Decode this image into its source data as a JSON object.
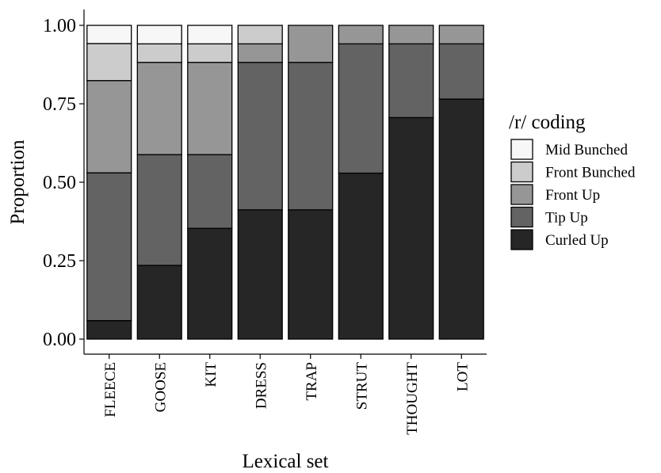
{
  "chart_data": {
    "type": "bar",
    "stacked": true,
    "title": "",
    "xlabel": "Lexical set",
    "ylabel": "Proportion",
    "ylim": [
      0,
      1
    ],
    "yticks": [
      "0.00",
      "0.25",
      "0.50",
      "0.75",
      "1.00"
    ],
    "grid": false,
    "legend_position": "right",
    "legend_title": "/r/ coding",
    "categories": [
      "FLEECE",
      "GOOSE",
      "KIT",
      "DRESS",
      "TRAP",
      "STRUT",
      "THOUGHT",
      "LOT"
    ],
    "series": [
      {
        "name": "Curled Up",
        "color": "#262626",
        "values": [
          0.059,
          0.235,
          0.353,
          0.412,
          0.412,
          0.529,
          0.706,
          0.765
        ]
      },
      {
        "name": "Tip Up",
        "color": "#636363",
        "values": [
          0.471,
          0.353,
          0.235,
          0.47,
          0.47,
          0.412,
          0.235,
          0.176
        ]
      },
      {
        "name": "Front Up",
        "color": "#969696",
        "values": [
          0.294,
          0.294,
          0.294,
          0.059,
          0.118,
          0.059,
          0.059,
          0.059
        ]
      },
      {
        "name": "Front Bunched",
        "color": "#cccccc",
        "values": [
          0.118,
          0.059,
          0.059,
          0.059,
          0,
          0,
          0,
          0
        ]
      },
      {
        "name": "Mid Bunched",
        "color": "#f7f7f7",
        "values": [
          0.058,
          0.059,
          0.059,
          0,
          0,
          0,
          0,
          0
        ]
      }
    ],
    "legend_order": [
      "Mid Bunched",
      "Front Bunched",
      "Front Up",
      "Tip Up",
      "Curled Up"
    ]
  }
}
